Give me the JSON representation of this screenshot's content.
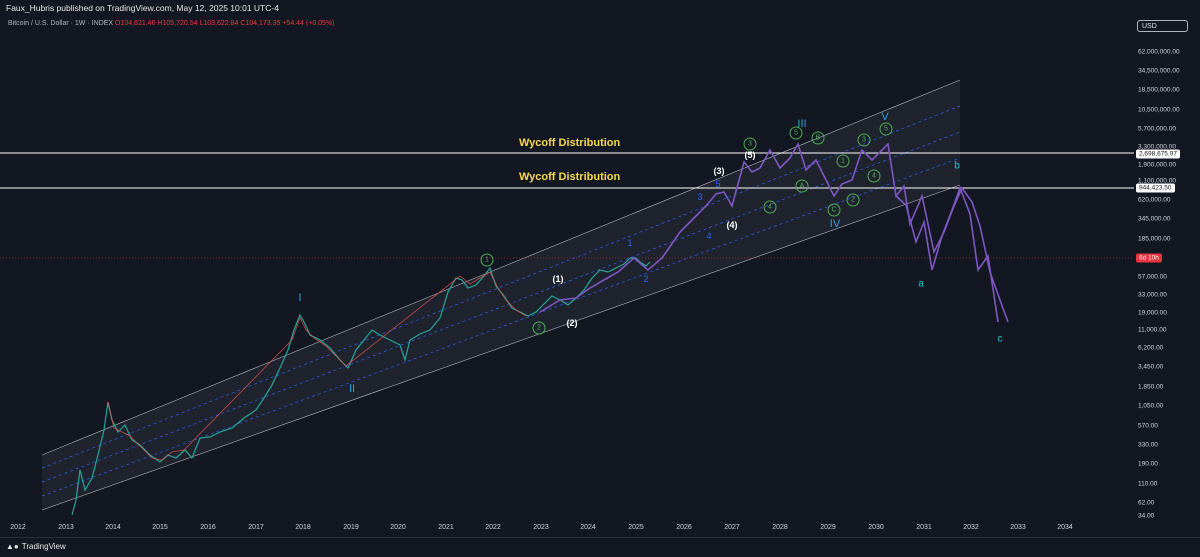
{
  "header": {
    "published": "Faux_Hubris published on TradingView.com, May 12, 2025 10:01 UTC-4",
    "symbol": "Bitcoin / U.S. Dollar · 1W · INDEX",
    "ohlc": "O104,621.46  H105,720.54  L103,622.84  C104,173.35  +54.44 (+0.05%)"
  },
  "currency_button": "USD",
  "y_axis": {
    "ticks": [
      "62,000,000.00",
      "34,500,000.00",
      "18,500,000.00",
      "10,500,000.00",
      "5,700,000.00",
      "3,300,000.00",
      "1,900,000.00",
      "1,100,000.00",
      "620,000.00",
      "345,000.00",
      "185,000.00",
      "57,000.00",
      "33,000.00",
      "19,000.00",
      "11,000.00",
      "6,200.00",
      "3,450.00",
      "1,850.00",
      "1,050.00",
      "570.00",
      "330.00",
      "190.00",
      "110.00",
      "62.00",
      "34.00"
    ],
    "price_labels": {
      "upper_line": "2,698,675.97",
      "lower_line": "944,423.50",
      "countdown": "6d 10h"
    }
  },
  "x_axis": {
    "ticks": [
      "2012",
      "2013",
      "2014",
      "2015",
      "2016",
      "2017",
      "2018",
      "2019",
      "2020",
      "2021",
      "2022",
      "2023",
      "2024",
      "2025",
      "2026",
      "2027",
      "2028",
      "2029",
      "2030",
      "2031",
      "2032",
      "2033",
      "2034"
    ]
  },
  "annotations": {
    "wyckoff_upper": "Wycoff Distribution",
    "wyckoff_lower": "Wycoff Distribution",
    "cycle_labels": [
      "I",
      "II",
      "III",
      "IV",
      "V"
    ],
    "primary_labels": [
      "(1)",
      "(2)",
      "(3)",
      "(4)",
      "(5)"
    ],
    "minor_labels": [
      "1",
      "2",
      "3",
      "4",
      "5"
    ],
    "corrective_labels": [
      "a",
      "b",
      "c"
    ],
    "circled": [
      "1",
      "2",
      "3",
      "4",
      "5",
      "A",
      "B",
      "C",
      "1",
      "2",
      "3",
      "4",
      "5",
      "1",
      "2",
      "4"
    ]
  },
  "colors": {
    "background": "#131722",
    "channel": "#b2b5be",
    "median_dashed": "#2962ff",
    "projection": "#7e57c2",
    "wyckoff_text": "#f7d94c",
    "wave_green": "#4caf50",
    "wave_blue": "#29a3e0",
    "price_red": "#e8343f"
  },
  "footer": {
    "brand": "TradingView"
  }
}
